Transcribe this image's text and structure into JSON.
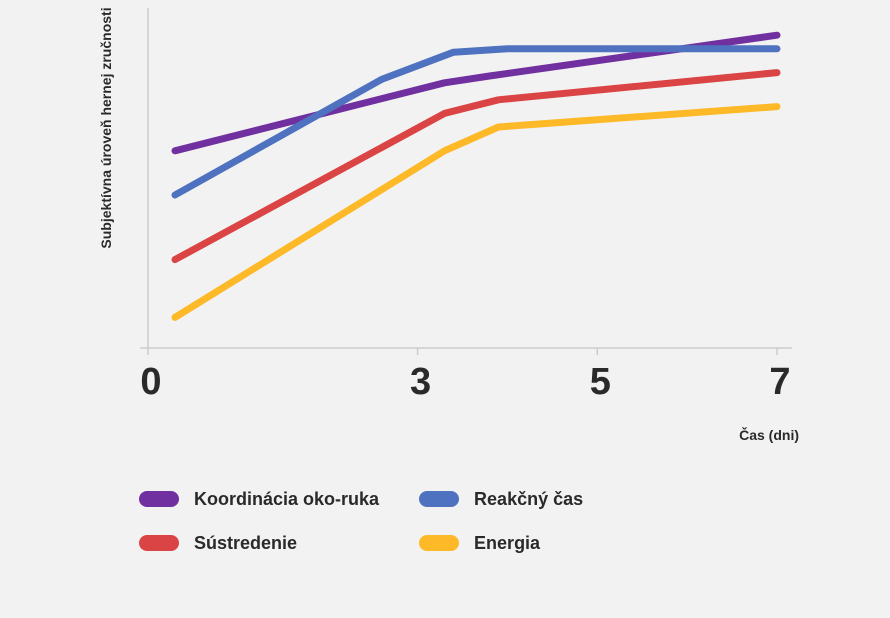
{
  "chart_data": {
    "type": "line",
    "title": "",
    "xlabel": "Čas (dni)",
    "ylabel": "Subjektívna úroveň hernej zručnosti",
    "xticks": [
      "0",
      "3",
      "5",
      "7"
    ],
    "xlim": [
      0,
      7
    ],
    "ylim": [
      0,
      100
    ],
    "grid": false,
    "legend_position": "bottom",
    "series": [
      {
        "name": "Koordinácia oko-ruka",
        "color": "#7030a0",
        "points": [
          [
            0.3,
            58
          ],
          [
            3.3,
            78
          ],
          [
            3.8,
            80
          ],
          [
            7,
            92
          ]
        ]
      },
      {
        "name": "Reakčný čas",
        "color": "#4f72c0",
        "points": [
          [
            0.3,
            45
          ],
          [
            2.6,
            79
          ],
          [
            3.4,
            87
          ],
          [
            4.0,
            88
          ],
          [
            7,
            88
          ]
        ]
      },
      {
        "name": "Sústredenie",
        "color": "#db4444",
        "points": [
          [
            0.3,
            26
          ],
          [
            3.3,
            69
          ],
          [
            3.9,
            73
          ],
          [
            7,
            81
          ]
        ]
      },
      {
        "name": "Energia",
        "color": "#fdb927",
        "points": [
          [
            0.3,
            9
          ],
          [
            3.3,
            58
          ],
          [
            3.9,
            65
          ],
          [
            7,
            71
          ]
        ]
      }
    ]
  }
}
